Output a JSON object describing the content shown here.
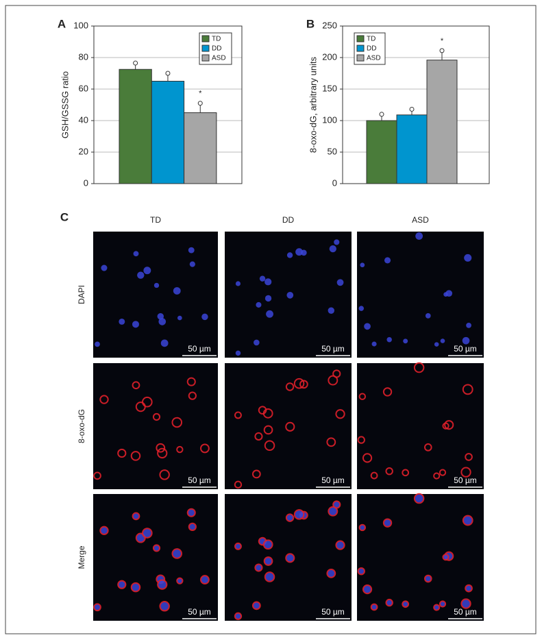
{
  "chart_data": [
    {
      "type": "bar",
      "label": "A",
      "ylabel": "GSH/GSSG ratio",
      "categories": [
        "TD",
        "DD",
        "ASD"
      ],
      "values": [
        72.5,
        65,
        45
      ],
      "errors": [
        4,
        5,
        6
      ],
      "colors": [
        "#4a7c3a",
        "#0095cf",
        "#a6a6a6"
      ],
      "ylim": [
        0,
        100
      ],
      "yticks": [
        0,
        20,
        40,
        60,
        80,
        100
      ],
      "grid": true,
      "annotation": "*"
    },
    {
      "type": "bar",
      "label": "B",
      "ylabel": "8-oxo-dG, arbitrary units",
      "categories": [
        "TD",
        "DD",
        "ASD"
      ],
      "values": [
        100,
        109,
        196
      ],
      "errors": [
        10,
        9,
        15
      ],
      "colors": [
        "#4a7c3a",
        "#0095cf",
        "#a6a6a6"
      ],
      "ylim": [
        0,
        250
      ],
      "yticks": [
        0,
        50,
        100,
        150,
        200,
        250
      ],
      "grid": true,
      "annotation": "*"
    }
  ],
  "panel_c": {
    "label": "C",
    "columns": [
      "TD",
      "DD",
      "ASD"
    ],
    "rows": [
      "DAPI",
      "8-oxo-dG",
      "Merge"
    ],
    "scale_bar": "50 µm"
  }
}
